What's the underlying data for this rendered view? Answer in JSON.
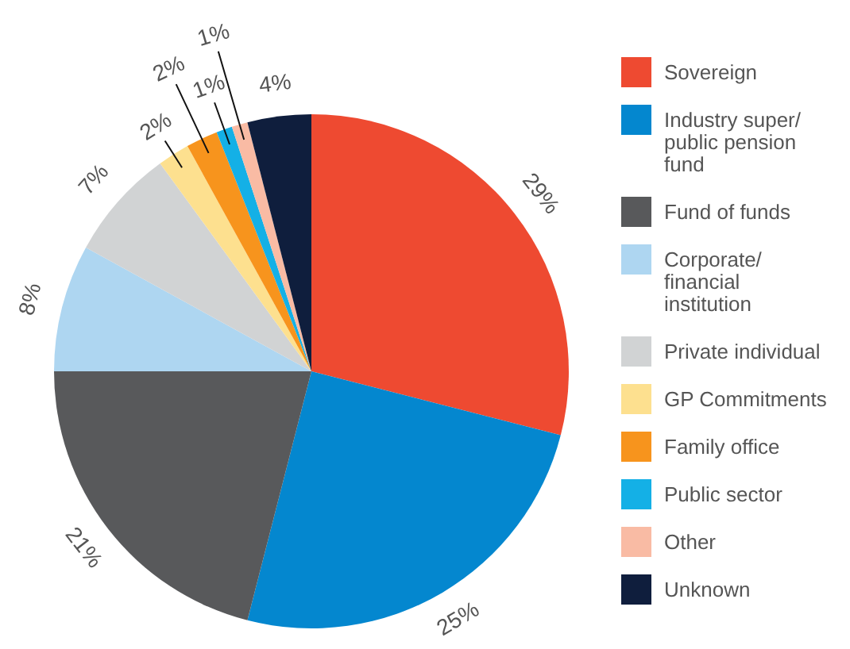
{
  "chart_data": {
    "type": "pie",
    "categories": [
      "Sovereign",
      "Industry super/ public pension fund",
      "Fund of funds",
      "Corporate/ financial institution",
      "Private individual",
      "GP Commitments",
      "Family office",
      "Public sector",
      "Other",
      "Unknown"
    ],
    "values": [
      29,
      25,
      21,
      8,
      7,
      2,
      2,
      1,
      1,
      4
    ],
    "colors": [
      "#ee4a31",
      "#0487cf",
      "#58595b",
      "#aed6f1",
      "#d1d3d4",
      "#fde08f",
      "#f7941d",
      "#14b0e6",
      "#f9bba4",
      "#0f1e3d"
    ],
    "value_labels": [
      "29%",
      "25%",
      "21%",
      "8%",
      "7%",
      "2%",
      "2%",
      "1%",
      "1%",
      "4%"
    ],
    "legend": "right"
  }
}
